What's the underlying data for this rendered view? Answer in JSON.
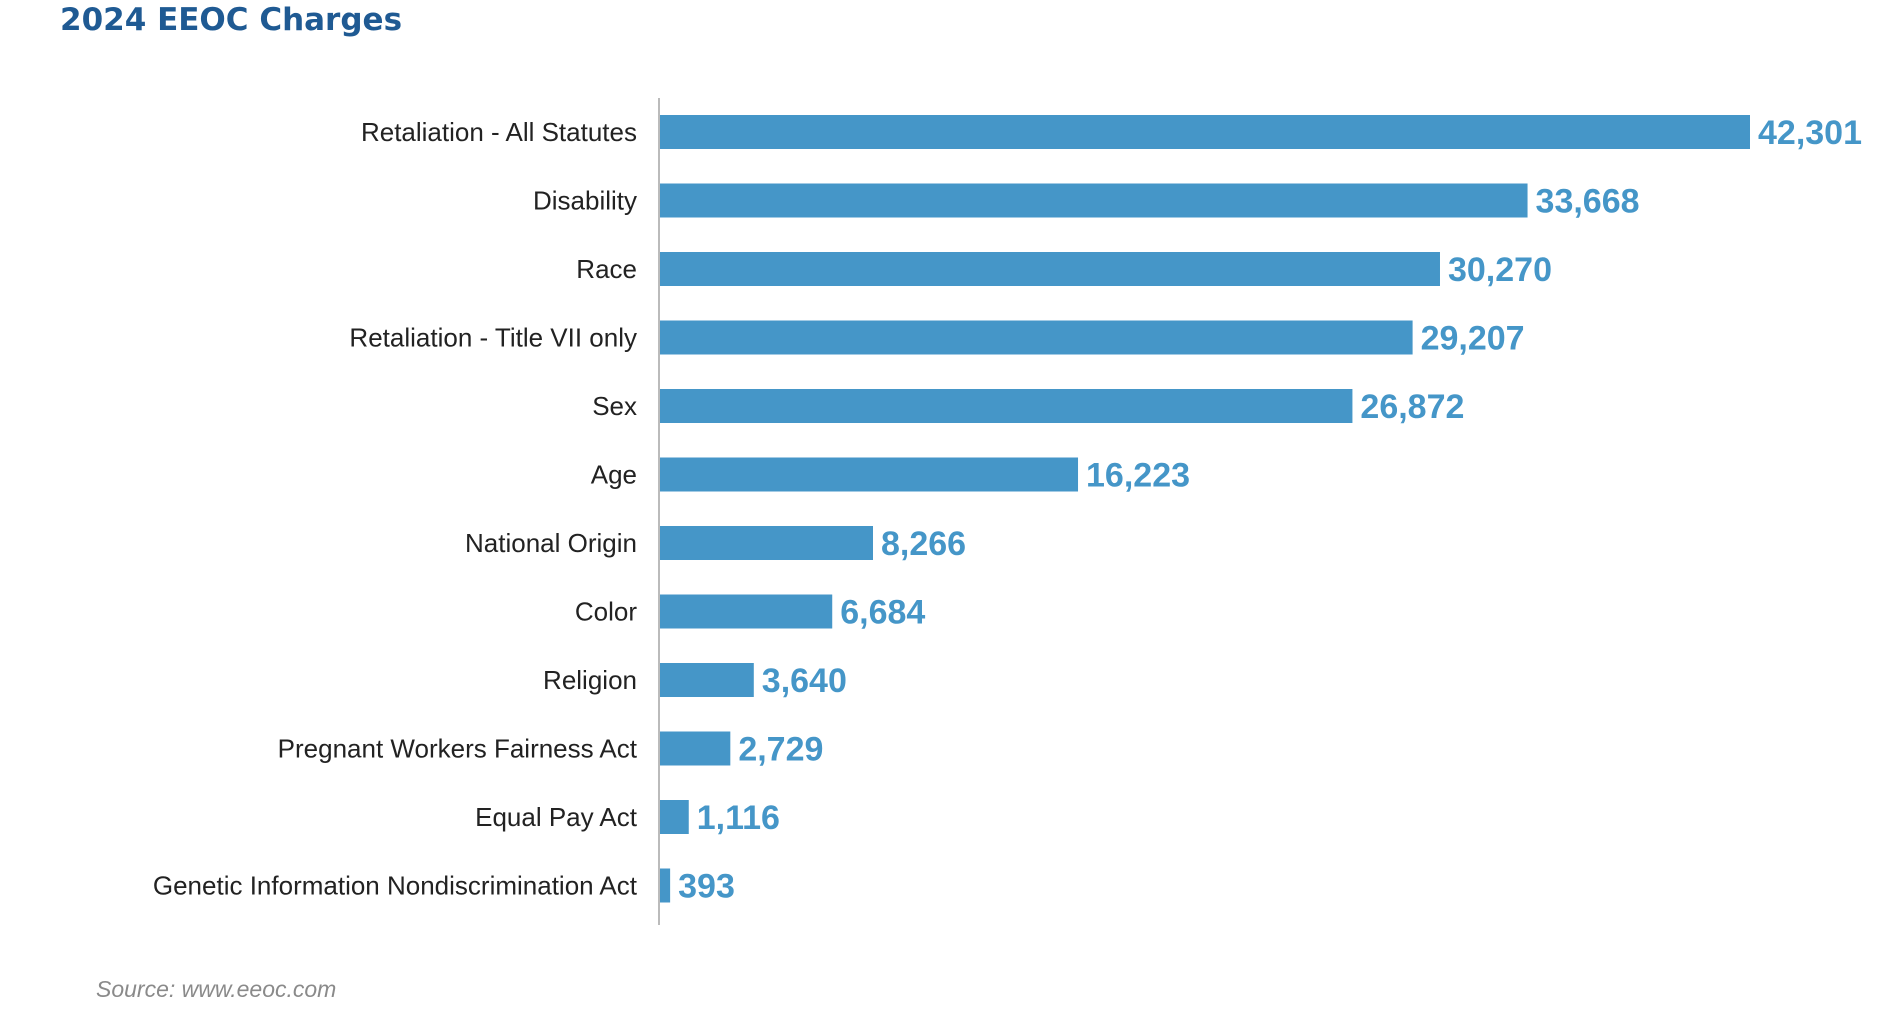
{
  "chart_data": {
    "type": "bar",
    "orientation": "horizontal",
    "title": "2024 EEOC Charges",
    "categories": [
      "Retaliation - All Statutes",
      "Disability",
      "Race",
      "Retaliation - Title VII only",
      "Sex",
      "Age",
      "National Origin",
      "Color",
      "Religion",
      "Pregnant Workers Fairness Act",
      "Equal Pay Act",
      "Genetic Information Nondiscrimination Act"
    ],
    "values": [
      42301,
      33668,
      30270,
      29207,
      26872,
      16223,
      8266,
      6684,
      3640,
      2729,
      1116,
      393
    ],
    "value_labels": [
      "42,301",
      "33,668",
      "30,270",
      "29,207",
      "26,872",
      "16,223",
      "8,266",
      "6,684",
      "3,640",
      "2,729",
      "1,116",
      "393"
    ],
    "xlim": [
      0,
      42301
    ],
    "grid": false,
    "legend": "none",
    "bar_color": "#4596c8",
    "value_label_color": "#4596c8",
    "axis_color": "#bbbbbb"
  },
  "source": "Source: www.eeoc.com"
}
